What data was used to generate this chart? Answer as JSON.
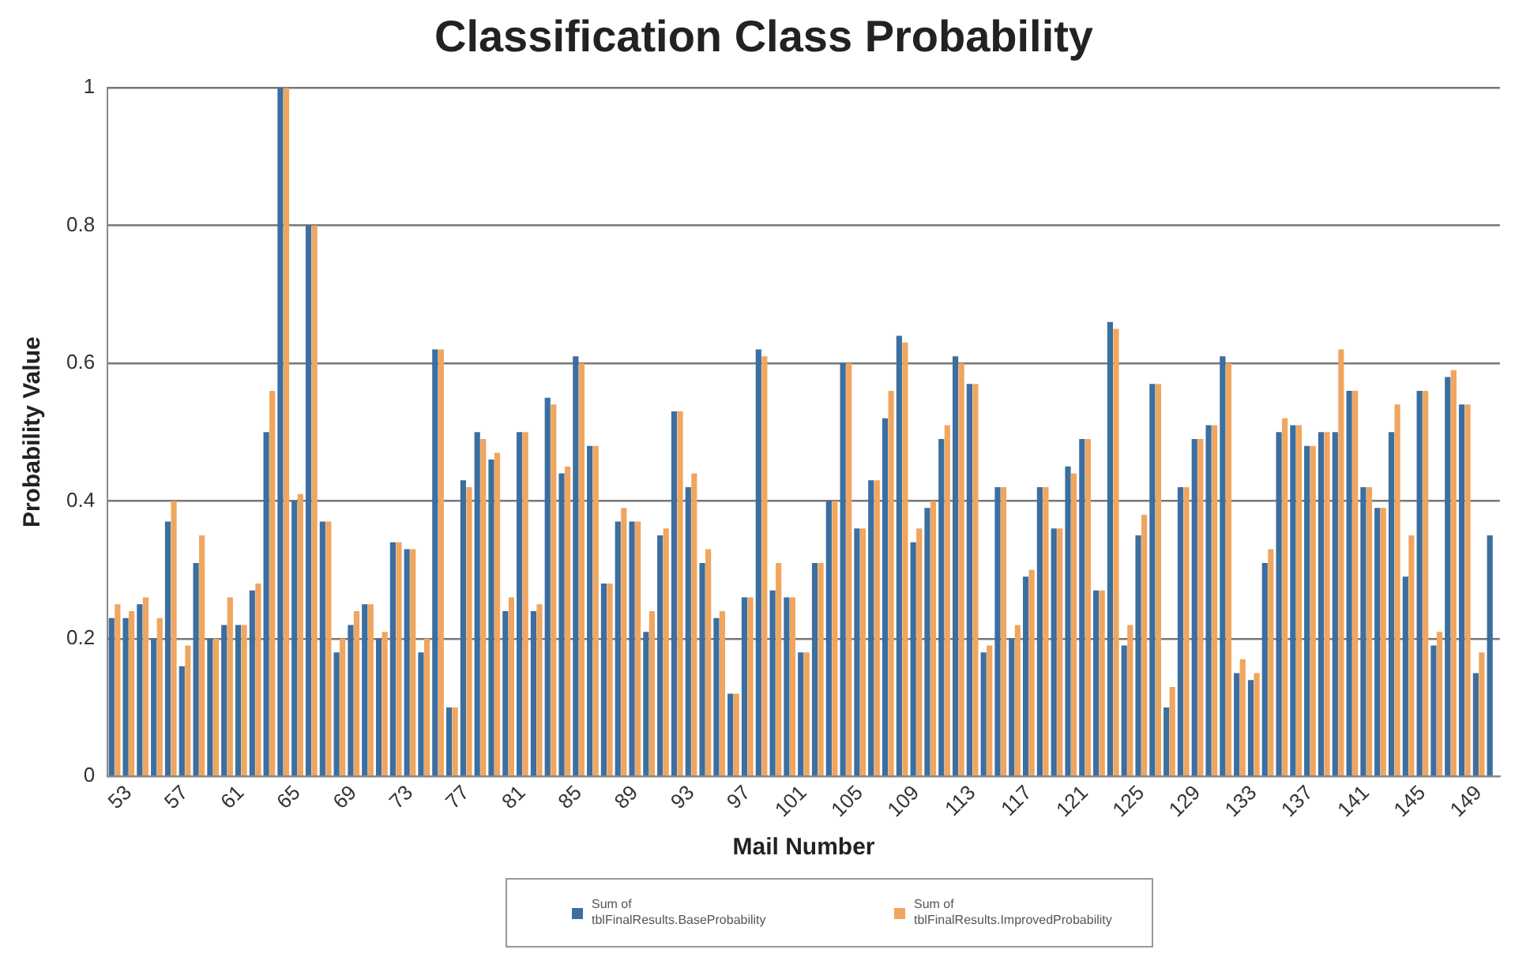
{
  "chart_data": {
    "type": "bar",
    "title": "Classification Class Probability",
    "xlabel": "Mail Number",
    "ylabel": "Probability Value",
    "categories": [
      null,
      "53",
      null,
      null,
      null,
      "57",
      null,
      null,
      null,
      "61",
      null,
      null,
      null,
      "65",
      null,
      null,
      null,
      "69",
      null,
      null,
      null,
      "73",
      null,
      null,
      null,
      "77",
      null,
      null,
      null,
      "81",
      null,
      null,
      null,
      "85",
      null,
      null,
      null,
      "89",
      null,
      null,
      null,
      "93",
      null,
      null,
      null,
      "97",
      null,
      null,
      null,
      "101",
      null,
      null,
      null,
      "105",
      null,
      null,
      null,
      "109",
      null,
      null,
      null,
      "113",
      null,
      null,
      null,
      "117",
      null,
      null,
      null,
      "121",
      null,
      null,
      null,
      "125",
      null,
      null,
      null,
      "129",
      null,
      null,
      null,
      "133",
      null,
      null,
      null,
      "137",
      null,
      null,
      null,
      "141",
      null,
      null,
      null,
      "145",
      null,
      null,
      null,
      "149",
      null
    ],
    "series": [
      {
        "name": "Sum of tblFinalResults.BaseProbability",
        "color": "#3c6e9f",
        "values": [
          0.23,
          0.23,
          0.25,
          0.2,
          0.37,
          0.16,
          0.31,
          0.2,
          0.22,
          0.22,
          0.27,
          0.5,
          1.0,
          0.4,
          0.8,
          0.37,
          0.18,
          0.22,
          0.25,
          0.2,
          0.34,
          0.33,
          0.18,
          0.62,
          0.1,
          0.43,
          0.5,
          0.46,
          0.24,
          0.5,
          0.24,
          0.55,
          0.44,
          0.61,
          0.48,
          0.28,
          0.37,
          0.37,
          0.21,
          0.35,
          0.53,
          0.42,
          0.31,
          0.23,
          0.12,
          0.26,
          0.62,
          0.27,
          0.26,
          0.18,
          0.31,
          0.4,
          0.6,
          0.36,
          0.43,
          0.52,
          0.64,
          0.34,
          0.39,
          0.49,
          0.61,
          0.57,
          0.18,
          0.42,
          0.2,
          0.29,
          0.42,
          0.36,
          0.45,
          0.49,
          0.27,
          0.66,
          0.19,
          0.35,
          0.57,
          0.1,
          0.42,
          0.49,
          0.51,
          0.61,
          0.15,
          0.14,
          0.31,
          0.5,
          0.51,
          0.48,
          0.5,
          0.5,
          0.56,
          0.42,
          0.39,
          0.5,
          0.29,
          0.56,
          0.19,
          0.58,
          0.54,
          0.15,
          0.35
        ]
      },
      {
        "name": "Sum of tblFinalResults.ImprovedProbability",
        "color": "#f0a65e",
        "values": [
          0.25,
          0.24,
          0.26,
          0.23,
          0.4,
          0.19,
          0.35,
          0.2,
          0.26,
          0.22,
          0.28,
          0.56,
          1.0,
          0.41,
          0.8,
          0.37,
          0.2,
          0.24,
          0.25,
          0.21,
          0.34,
          0.33,
          0.2,
          0.62,
          0.1,
          0.42,
          0.49,
          0.47,
          0.26,
          0.5,
          0.25,
          0.54,
          0.45,
          0.6,
          0.48,
          0.28,
          0.39,
          0.37,
          0.24,
          0.36,
          0.53,
          0.44,
          0.33,
          0.24,
          0.12,
          0.26,
          0.61,
          0.31,
          0.26,
          0.18,
          0.31,
          0.4,
          0.6,
          0.36,
          0.43,
          0.56,
          0.63,
          0.36,
          0.4,
          0.51,
          0.6,
          0.57,
          0.19,
          0.42,
          0.22,
          0.3,
          0.42,
          0.36,
          0.44,
          0.49,
          0.27,
          0.65,
          0.22,
          0.38,
          0.57,
          0.13,
          0.42,
          0.49,
          0.51,
          0.6,
          0.17,
          0.15,
          0.33,
          0.52,
          0.51,
          0.48,
          0.5,
          0.62,
          0.56,
          0.42,
          0.39,
          0.54,
          0.35,
          0.56,
          0.21,
          0.59,
          0.54,
          0.18,
          null
        ]
      }
    ],
    "ylim": [
      0,
      1
    ],
    "yticks": [
      0,
      0.2,
      0.4,
      0.6,
      0.8,
      1
    ],
    "grid": "y",
    "legend": "bottom"
  }
}
